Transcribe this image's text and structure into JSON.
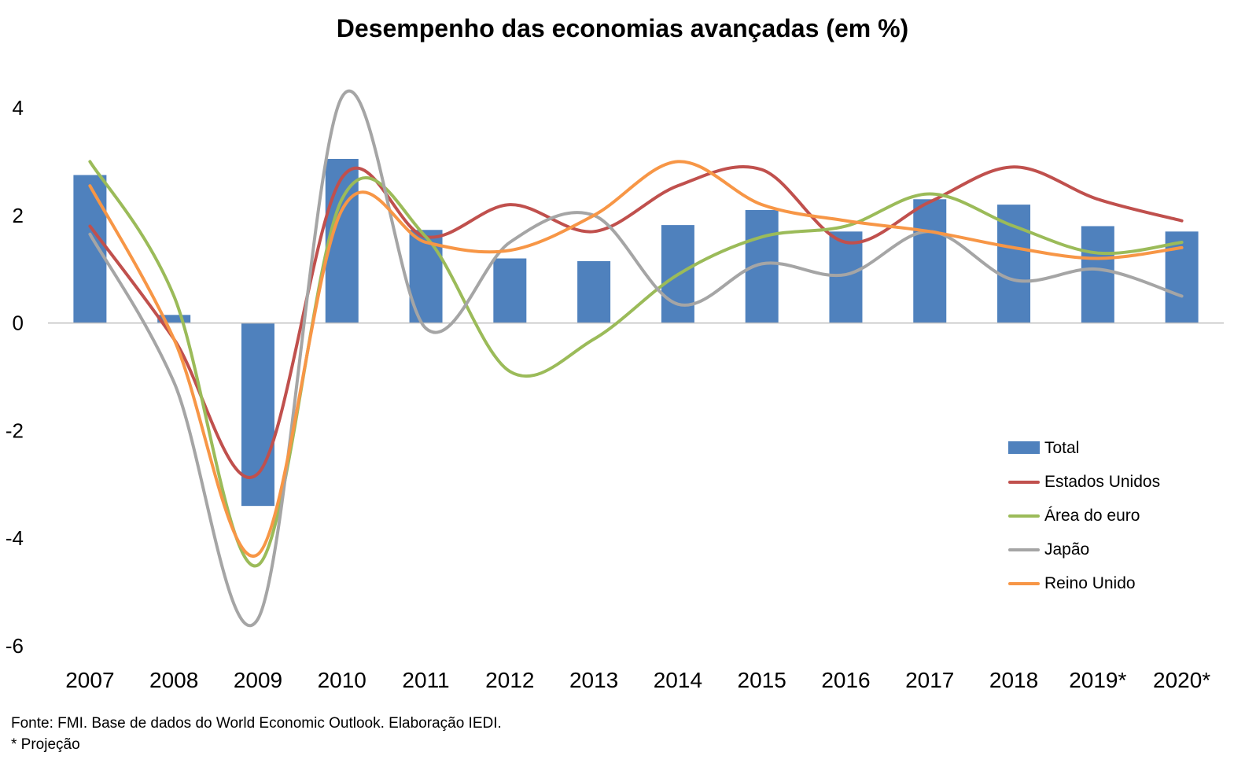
{
  "chart_data": {
    "type": "bar+line",
    "title": "Desempenho das economias avançadas (em %)",
    "categories": [
      "2007",
      "2008",
      "2009",
      "2010",
      "2011",
      "2012",
      "2013",
      "2014",
      "2015",
      "2016",
      "2017",
      "2018",
      "2019*",
      "2020*"
    ],
    "ylim": [
      -6,
      4
    ],
    "yticks": [
      "-6",
      "-4",
      "-2",
      "0",
      "2",
      "4"
    ],
    "yticks_values": [
      -6,
      -4,
      -2,
      0,
      2,
      4
    ],
    "bars": {
      "name": "Total",
      "color": "#4f81bd",
      "values": [
        2.75,
        0.15,
        -3.4,
        3.05,
        1.73,
        1.2,
        1.15,
        1.82,
        2.1,
        1.7,
        2.3,
        2.2,
        1.8,
        1.7
      ]
    },
    "series": [
      {
        "name": "Estados Unidos",
        "color": "#c0504d",
        "values": [
          1.8,
          -0.3,
          -2.8,
          2.7,
          1.6,
          2.2,
          1.7,
          2.55,
          2.85,
          1.5,
          2.25,
          2.9,
          2.3,
          1.9
        ]
      },
      {
        "name": "Área do euro",
        "color": "#9bbb59",
        "values": [
          3.0,
          0.5,
          -4.5,
          2.3,
          1.6,
          -0.9,
          -0.3,
          0.9,
          1.6,
          1.8,
          2.4,
          1.8,
          1.3,
          1.5
        ]
      },
      {
        "name": "Japão",
        "color": "#a5a5a5",
        "values": [
          1.65,
          -1.1,
          -5.5,
          4.2,
          -0.1,
          1.5,
          2.0,
          0.35,
          1.1,
          0.9,
          1.7,
          0.8,
          1.0,
          0.5
        ]
      },
      {
        "name": "Reino Unido",
        "color": "#f79646",
        "values": [
          2.55,
          -0.3,
          -4.3,
          2.1,
          1.5,
          1.35,
          2.0,
          3.0,
          2.2,
          1.9,
          1.7,
          1.4,
          1.2,
          1.4
        ]
      }
    ],
    "legend_position": "bottom-right",
    "source_note": "Fonte: FMI. Base de dados do World Economic Outlook. Elaboração IEDI.",
    "projection_note": "* Projeção"
  }
}
